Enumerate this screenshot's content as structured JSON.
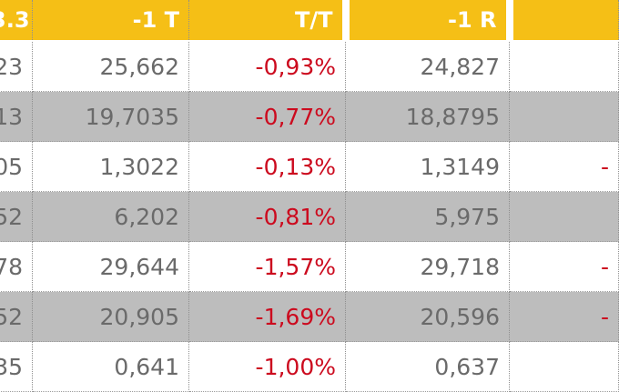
{
  "table": {
    "headers": [
      "3.3",
      "-1 T",
      "T/T",
      "-1 R",
      ""
    ],
    "rows": [
      {
        "c0": "23",
        "c1": "25,662",
        "c2": "-0,93%",
        "c3": "24,827",
        "c4": ""
      },
      {
        "c0": "13",
        "c1": "19,7035",
        "c2": "-0,77%",
        "c3": "18,8795",
        "c4": ""
      },
      {
        "c0": "05",
        "c1": "1,3022",
        "c2": "-0,13%",
        "c3": "1,3149",
        "c4": "-"
      },
      {
        "c0": "52",
        "c1": "6,202",
        "c2": "-0,81%",
        "c3": "5,975",
        "c4": ""
      },
      {
        "c0": "78",
        "c1": "29,644",
        "c2": "-1,57%",
        "c3": "29,718",
        "c4": "-"
      },
      {
        "c0": "52",
        "c1": "20,905",
        "c2": "-1,69%",
        "c3": "20,596",
        "c4": "-"
      },
      {
        "c0": "35",
        "c1": "0,641",
        "c2": "-1,00%",
        "c3": "0,637",
        "c4": ""
      }
    ]
  },
  "colors": {
    "header_bg": "#f5bf16",
    "header_text": "#ffffff",
    "shade_row": "#bdbdbd",
    "negative": "#cc0a1e",
    "value_text": "#6a6a6a"
  }
}
